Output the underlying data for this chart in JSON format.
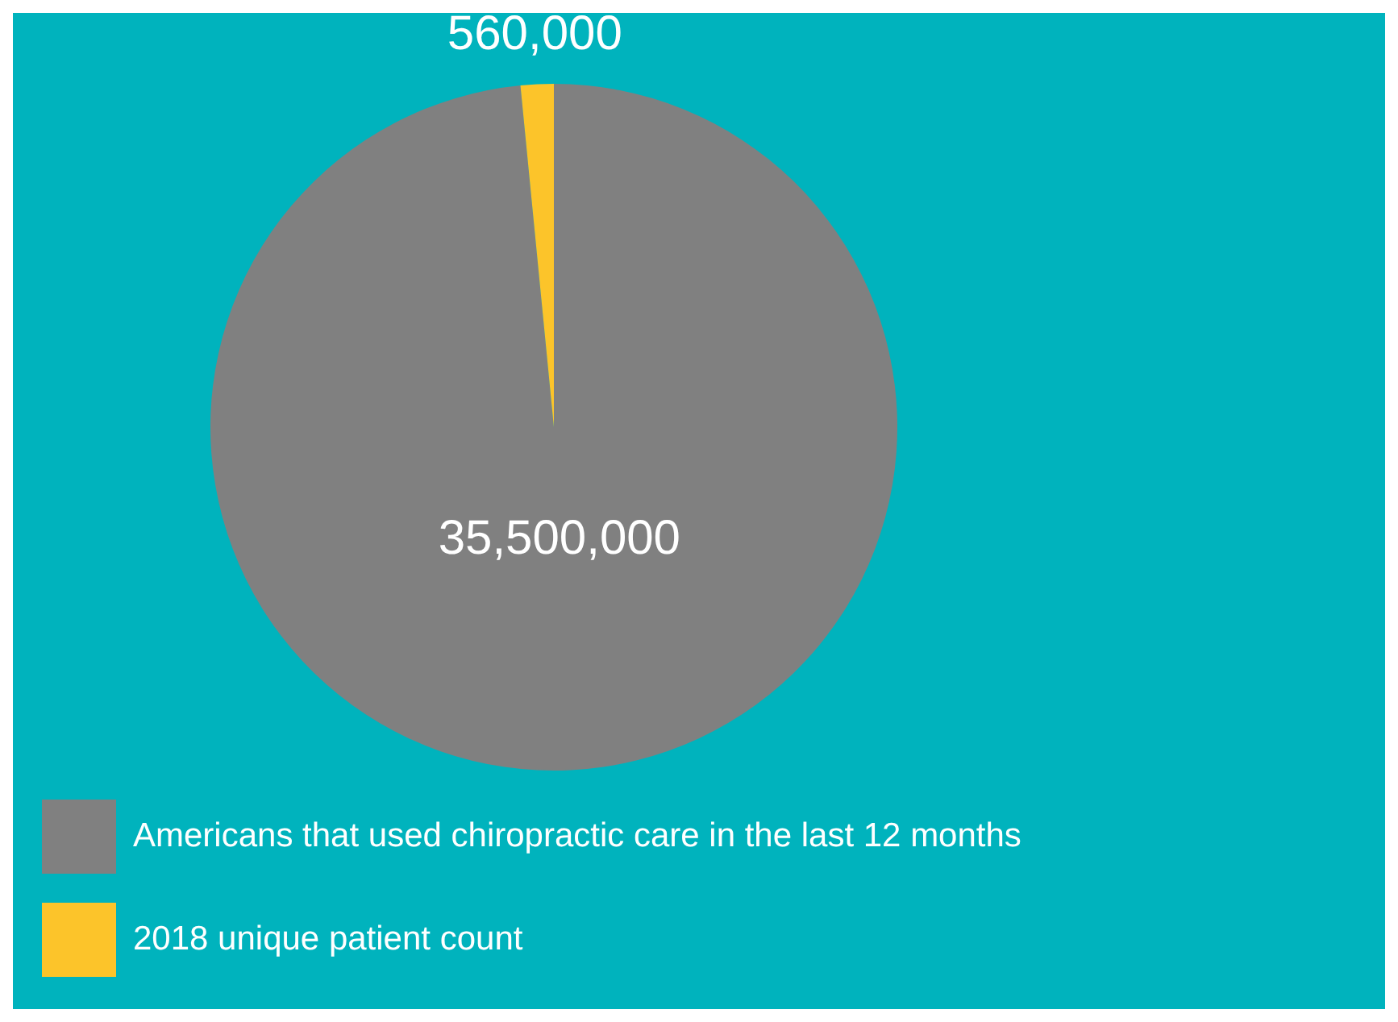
{
  "chart_data": {
    "type": "pie",
    "categories": [
      "Americans that used chiropractic care in the last 12 months",
      "2018 unique patient count"
    ],
    "values": [
      35500000,
      560000
    ],
    "colors": [
      "#808080",
      "#fcc42a"
    ],
    "value_labels": [
      "35,500,000",
      "560,000"
    ],
    "legend": "bottom"
  }
}
